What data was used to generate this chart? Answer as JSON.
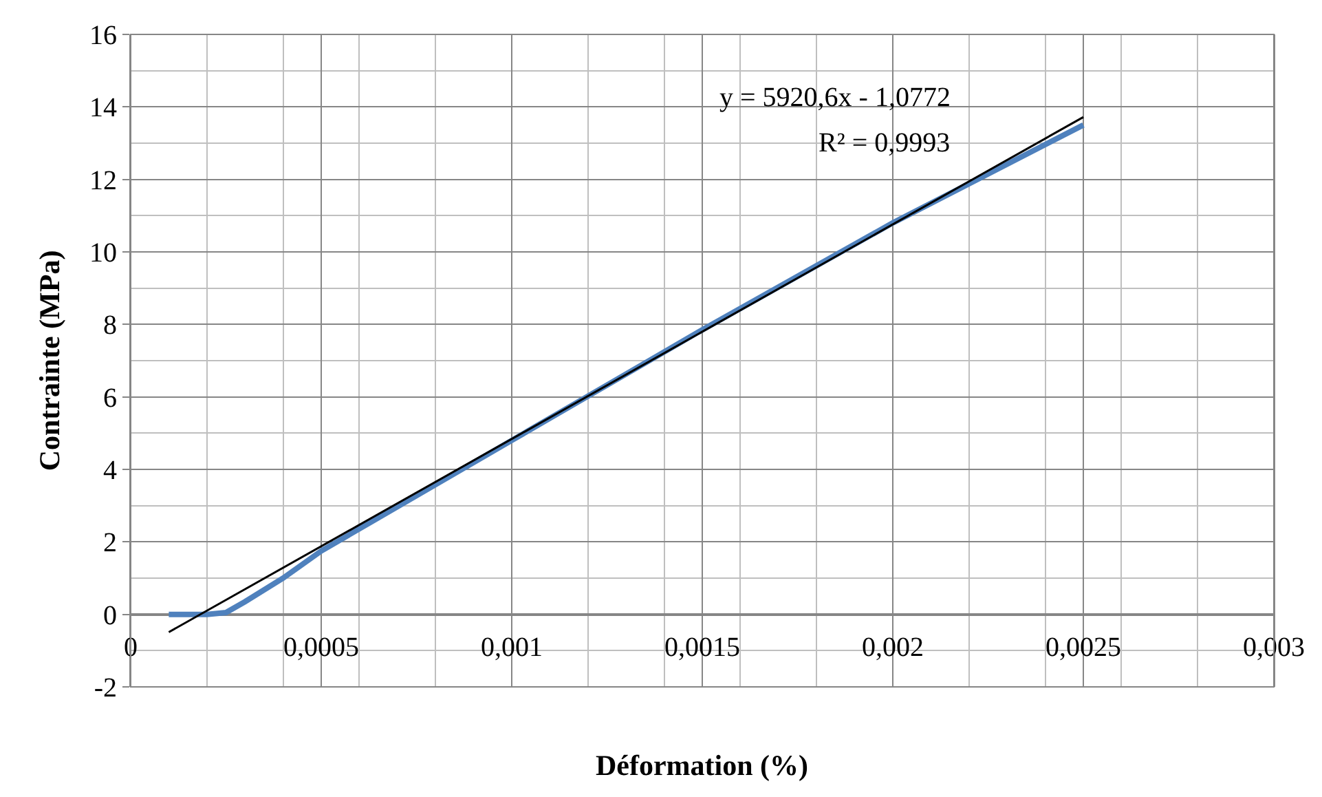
{
  "chart_data": {
    "type": "line",
    "xlabel": "Déformation (%)",
    "ylabel": "Contrainte (MPa)",
    "xlim": [
      0,
      0.003
    ],
    "xticks": [
      0,
      {
        "value": 0.0005,
        "label": "0,0005"
      },
      {
        "value": 0.001,
        "label": "0,001"
      },
      {
        "value": 0.0015,
        "label": "0,0015"
      },
      {
        "value": 0.002,
        "label": "0,002"
      },
      {
        "value": 0.0025,
        "label": "0,0025"
      },
      {
        "value": 0.003,
        "label": "0,003"
      }
    ],
    "ylim": [
      -2,
      16
    ],
    "yticks": [
      -2,
      0,
      2,
      4,
      6,
      8,
      10,
      12,
      14,
      16
    ],
    "grid": true,
    "legend": false,
    "marker": "none",
    "line_style": "solid",
    "series": [
      {
        "color": "#4f81bd",
        "x": [
          0.0001,
          0.0002,
          0.00025,
          0.0003,
          0.0004,
          0.0005,
          0.001,
          0.0015,
          0.002,
          0.0025
        ],
        "values": [
          0,
          0,
          0.05,
          0.35,
          1.0,
          1.75,
          4.8,
          7.85,
          10.8,
          13.5
        ]
      },
      {
        "color": "#000000",
        "x": [
          0.0001,
          0.0025
        ],
        "values": [
          -0.49,
          13.72
        ]
      }
    ],
    "annotations": [
      "y = 5920,6x - 1,0772",
      "R² = 0,9993"
    ]
  }
}
